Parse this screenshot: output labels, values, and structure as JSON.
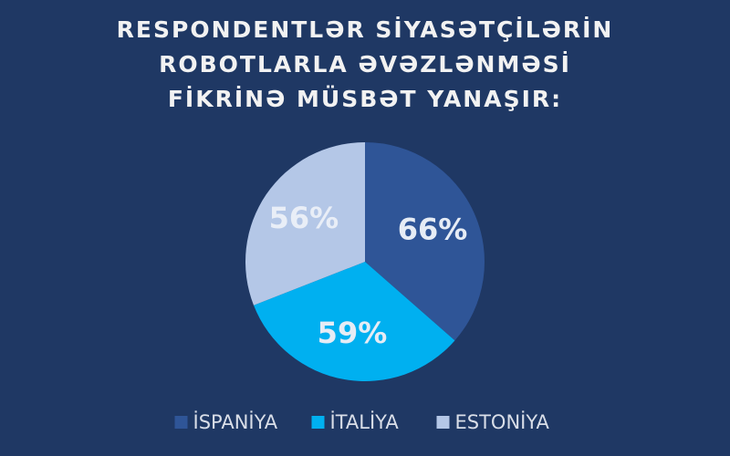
{
  "chart_data": {
    "type": "pie",
    "title": "RESPONDENTLƏR SİYASƏTÇİLƏRİN ROBOTLARLA ƏVƏZLƏNMƏSİ FİKRİNƏ MÜSBƏT YANAŞIR:",
    "categories": [
      "İSPANİYA",
      "İTALİYA",
      "ESTONİYA"
    ],
    "values": [
      66,
      59,
      56
    ],
    "value_labels": [
      "66%",
      "59%",
      "56%"
    ],
    "colors": [
      "#2f5597",
      "#00b0f0",
      "#b4c7e7"
    ],
    "legend": "bottom"
  }
}
